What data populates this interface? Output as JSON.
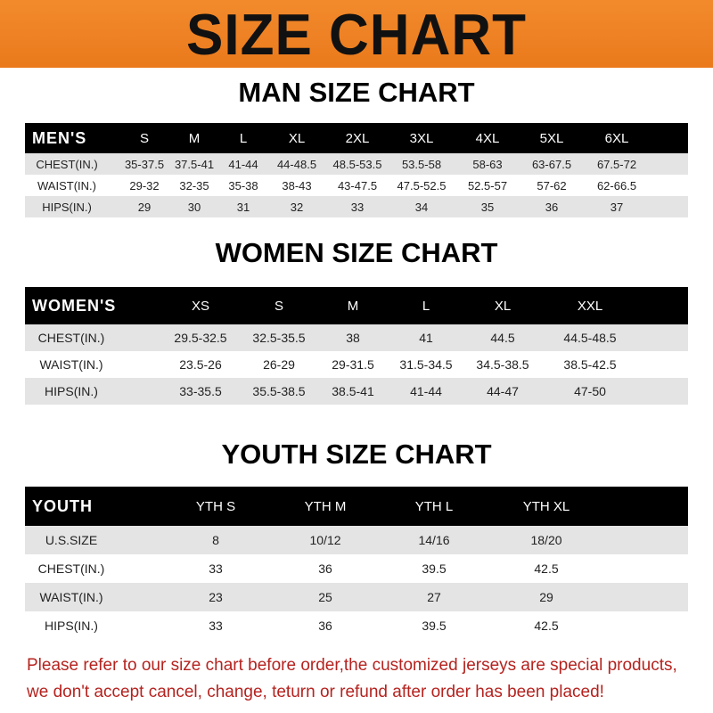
{
  "banner": {
    "title": "SIZE CHART",
    "color": "#ee821f"
  },
  "tables": [
    {
      "title": "MAN SIZE CHART",
      "header": [
        "MEN'S",
        "S",
        "M",
        "L",
        "XL",
        "2XL",
        "3XL",
        "4XL",
        "5XL",
        "6XL"
      ],
      "rows": [
        [
          "CHEST(IN.)",
          "35-37.5",
          "37.5-41",
          "41-44",
          "44-48.5",
          "48.5-53.5",
          "53.5-58",
          "58-63",
          "63-67.5",
          "67.5-72"
        ],
        [
          "WAIST(IN.)",
          "29-32",
          "32-35",
          "35-38",
          "38-43",
          "43-47.5",
          "47.5-52.5",
          "52.5-57",
          "57-62",
          "62-66.5"
        ],
        [
          "HIPS(IN.)",
          "29",
          "30",
          "31",
          "32",
          "33",
          "34",
          "35",
          "36",
          "37"
        ]
      ]
    },
    {
      "title": "WOMEN SIZE CHART",
      "header": [
        "WOMEN'S",
        "XS",
        "S",
        "M",
        "L",
        "XL",
        "XXL"
      ],
      "rows": [
        [
          "CHEST(IN.)",
          "29.5-32.5",
          "32.5-35.5",
          "38",
          "41",
          "44.5",
          "44.5-48.5"
        ],
        [
          "WAIST(IN.)",
          "23.5-26",
          "26-29",
          "29-31.5",
          "31.5-34.5",
          "34.5-38.5",
          "38.5-42.5"
        ],
        [
          "HIPS(IN.)",
          "33-35.5",
          "35.5-38.5",
          "38.5-41",
          "41-44",
          "44-47",
          "47-50"
        ]
      ]
    },
    {
      "title": "YOUTH SIZE CHART",
      "header": [
        "YOUTH",
        "YTH S",
        "YTH M",
        "YTH L",
        "YTH XL"
      ],
      "rows": [
        [
          "U.S.SIZE",
          "8",
          "10/12",
          "14/16",
          "18/20"
        ],
        [
          "CHEST(IN.)",
          "33",
          "36",
          "39.5",
          "42.5"
        ],
        [
          "WAIST(IN.)",
          "23",
          "25",
          "27",
          "29"
        ],
        [
          "HIPS(IN.)",
          "33",
          "36",
          "39.5",
          "42.5"
        ]
      ]
    }
  ],
  "notice": {
    "line1": "Please refer to our size chart before order,the customized jerseys are special products,",
    "line2": "we don't accept cancel, change, teturn or refund after order has been placed!",
    "color": "#b5231f"
  }
}
